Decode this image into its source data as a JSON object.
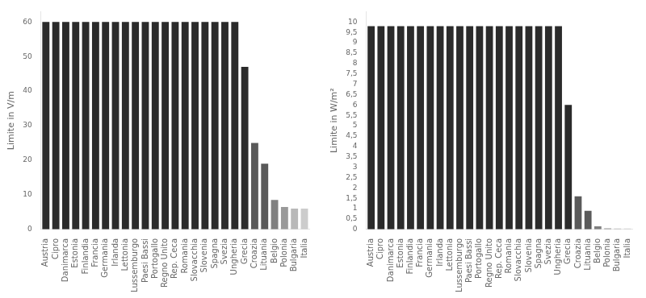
{
  "chart_data": [
    {
      "type": "bar",
      "categories": [
        "Austria",
        "Cipro",
        "Danimarca",
        "Estonia",
        "Finlandia",
        "Francia",
        "Germania",
        "Irlanda",
        "Lettonia",
        "Lussemburgo",
        "Paesi Bassi",
        "Portogallo",
        "Regno Unito",
        "Rep. Ceca",
        "Romania",
        "Slovacchia",
        "Slovenia",
        "Spagna",
        "Svezia",
        "Ungheria",
        "Grecia",
        "Croazia",
        "Lituania",
        "Belgio",
        "Polonia",
        "Bulgaria",
        "Italia"
      ],
      "values": [
        60.0,
        60.0,
        60.0,
        60.0,
        60.0,
        60.0,
        60.0,
        60.0,
        60.0,
        60.0,
        60.0,
        60.0,
        60.0,
        60.0,
        60.0,
        60.0,
        60.0,
        60.0,
        60.0,
        60.0,
        47.0,
        25.0,
        19.0,
        8.5,
        6.5,
        6.0,
        6.0
      ],
      "colors": [
        "#2b2b2b",
        "#2b2b2b",
        "#2b2b2b",
        "#2b2b2b",
        "#2b2b2b",
        "#2b2b2b",
        "#2b2b2b",
        "#2b2b2b",
        "#2b2b2b",
        "#2b2b2b",
        "#2b2b2b",
        "#2b2b2b",
        "#2b2b2b",
        "#2b2b2b",
        "#2b2b2b",
        "#2b2b2b",
        "#2b2b2b",
        "#2b2b2b",
        "#2b2b2b",
        "#2b2b2b",
        "#2b2b2b",
        "#5a5a5a",
        "#5a5a5a",
        "#808080",
        "#999999",
        "#b8b8b8",
        "#cccccc"
      ],
      "y_label": "Limite in V/m",
      "ylim": [
        0,
        63
      ],
      "yticks": [
        0,
        10,
        20,
        30,
        40,
        50,
        60
      ],
      "grid": false
    },
    {
      "type": "bar",
      "categories": [
        "Austria",
        "Cipro",
        "Danimarca",
        "Estonia",
        "Finlandia",
        "Francia",
        "Germania",
        "Irlanda",
        "Lettonia",
        "Lussemburgo",
        "Paesi Bassi",
        "Portogallo",
        "Regno Unito",
        "Rep. Ceca",
        "Romania",
        "Slovacchia",
        "Slovenia",
        "Spagna",
        "Svezia",
        "Ungheria",
        "Grecia",
        "Croazia",
        "Lituania",
        "Belgio",
        "Polonia",
        "Bulgaria",
        "Italia"
      ],
      "values": [
        9.8,
        9.8,
        9.8,
        9.8,
        9.8,
        9.8,
        9.8,
        9.8,
        9.8,
        9.8,
        9.8,
        9.8,
        9.8,
        9.8,
        9.8,
        9.8,
        9.8,
        9.8,
        9.8,
        9.8,
        6.0,
        1.6,
        0.9,
        0.15,
        0.05,
        0.04,
        0.04
      ],
      "colors": [
        "#2b2b2b",
        "#2b2b2b",
        "#2b2b2b",
        "#2b2b2b",
        "#2b2b2b",
        "#2b2b2b",
        "#2b2b2b",
        "#2b2b2b",
        "#2b2b2b",
        "#2b2b2b",
        "#2b2b2b",
        "#2b2b2b",
        "#2b2b2b",
        "#2b2b2b",
        "#2b2b2b",
        "#2b2b2b",
        "#2b2b2b",
        "#2b2b2b",
        "#2b2b2b",
        "#2b2b2b",
        "#2b2b2b",
        "#5a5a5a",
        "#5a5a5a",
        "#808080",
        "#999999",
        "#b8b8b8",
        "#cccccc"
      ],
      "y_label": "Limite in W/m²",
      "ylim": [
        0,
        10.5
      ],
      "yticks": [
        0,
        {
          "value": 0.5,
          "label": "0,5"
        },
        1,
        {
          "value": 1.5,
          "label": "1,5"
        },
        2,
        {
          "value": 2.5,
          "label": "2,5"
        },
        3,
        {
          "value": 3.5,
          "label": "3,5"
        },
        4,
        {
          "value": 4.5,
          "label": "4,5"
        },
        5,
        {
          "value": 5.5,
          "label": "5,5"
        },
        6,
        {
          "value": 6.5,
          "label": "6,5"
        },
        7,
        {
          "value": 7.5,
          "label": "7,5"
        },
        8,
        {
          "value": 8.5,
          "label": "8,5"
        },
        9,
        {
          "value": 9.5,
          "label": "9,5"
        },
        10
      ],
      "grid": false
    }
  ]
}
